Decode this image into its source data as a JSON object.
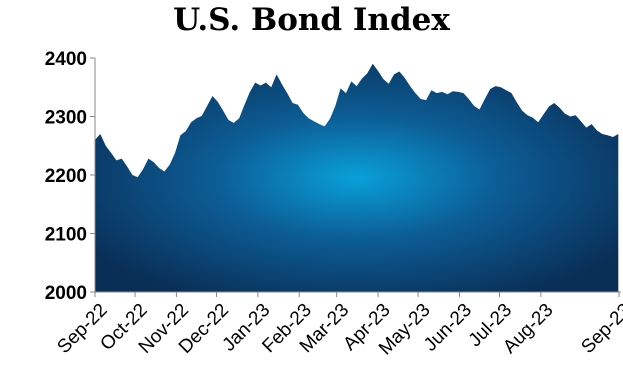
{
  "chart_data": {
    "type": "area",
    "title": "U.S. Bond Index",
    "xlabel": "",
    "ylabel": "",
    "ylim": [
      2000,
      2400
    ],
    "yticks": [
      "2000",
      "2100",
      "2200",
      "2300",
      "2400"
    ],
    "xticks": [
      "Sep-22",
      "Oct-22",
      "Nov-22",
      "Dec-22",
      "Jan-23",
      "Feb-23",
      "Mar-23",
      "Apr-23",
      "May-23",
      "Jun-23",
      "Jul-23",
      "Aug-23",
      "Sep-23"
    ],
    "grid": false,
    "legend": "none",
    "colors": {
      "fill_center": "#0aa0d8",
      "fill_mid": "#0c5d96",
      "fill_edge": "#0a2f57"
    },
    "x": [
      "2022-09-01",
      "2022-09-05",
      "2022-09-09",
      "2022-09-13",
      "2022-09-17",
      "2022-09-21",
      "2022-09-25",
      "2022-09-29",
      "2022-10-03",
      "2022-10-07",
      "2022-10-11",
      "2022-10-15",
      "2022-10-19",
      "2022-10-23",
      "2022-10-27",
      "2022-10-31",
      "2022-11-04",
      "2022-11-08",
      "2022-11-12",
      "2022-11-16",
      "2022-11-20",
      "2022-11-24",
      "2022-11-28",
      "2022-12-02",
      "2022-12-06",
      "2022-12-10",
      "2022-12-14",
      "2022-12-18",
      "2022-12-22",
      "2022-12-26",
      "2022-12-30",
      "2023-01-03",
      "2023-01-07",
      "2023-01-11",
      "2023-01-15",
      "2023-01-19",
      "2023-01-23",
      "2023-01-27",
      "2023-01-31",
      "2023-02-04",
      "2023-02-08",
      "2023-02-12",
      "2023-02-16",
      "2023-02-20",
      "2023-02-24",
      "2023-02-28",
      "2023-03-04",
      "2023-03-08",
      "2023-03-12",
      "2023-03-16",
      "2023-03-20",
      "2023-03-24",
      "2023-03-28",
      "2023-04-01",
      "2023-04-05",
      "2023-04-09",
      "2023-04-13",
      "2023-04-17",
      "2023-04-21",
      "2023-04-25",
      "2023-04-29",
      "2023-05-03",
      "2023-05-07",
      "2023-05-11",
      "2023-05-15",
      "2023-05-19",
      "2023-05-23",
      "2023-05-27",
      "2023-05-31",
      "2023-06-04",
      "2023-06-08",
      "2023-06-12",
      "2023-06-16",
      "2023-06-20",
      "2023-06-24",
      "2023-06-28",
      "2023-07-02",
      "2023-07-06",
      "2023-07-10",
      "2023-07-14",
      "2023-07-18",
      "2023-07-22",
      "2023-07-26",
      "2023-07-30",
      "2023-08-03",
      "2023-08-07",
      "2023-08-11",
      "2023-08-15",
      "2023-08-19",
      "2023-08-23",
      "2023-08-27",
      "2023-08-31",
      "2023-09-04",
      "2023-09-08",
      "2023-09-12",
      "2023-09-16",
      "2023-09-20",
      "2023-09-24",
      "2023-09-28"
    ],
    "values": [
      2260,
      2270,
      2250,
      2238,
      2225,
      2228,
      2215,
      2200,
      2196,
      2210,
      2228,
      2222,
      2212,
      2206,
      2218,
      2238,
      2268,
      2275,
      2290,
      2297,
      2301,
      2318,
      2335,
      2325,
      2310,
      2294,
      2289,
      2297,
      2320,
      2342,
      2358,
      2353,
      2358,
      2350,
      2372,
      2355,
      2340,
      2323,
      2320,
      2306,
      2297,
      2292,
      2287,
      2283,
      2296,
      2318,
      2348,
      2340,
      2360,
      2352,
      2365,
      2374,
      2390,
      2378,
      2364,
      2356,
      2372,
      2377,
      2366,
      2352,
      2340,
      2330,
      2328,
      2345,
      2340,
      2342,
      2338,
      2343,
      2342,
      2340,
      2330,
      2318,
      2312,
      2330,
      2347,
      2352,
      2350,
      2345,
      2340,
      2324,
      2310,
      2302,
      2298,
      2290,
      2304,
      2317,
      2323,
      2315,
      2305,
      2300,
      2302,
      2292,
      2281,
      2287,
      2276,
      2270,
      2268,
      2265,
      2270
    ]
  }
}
